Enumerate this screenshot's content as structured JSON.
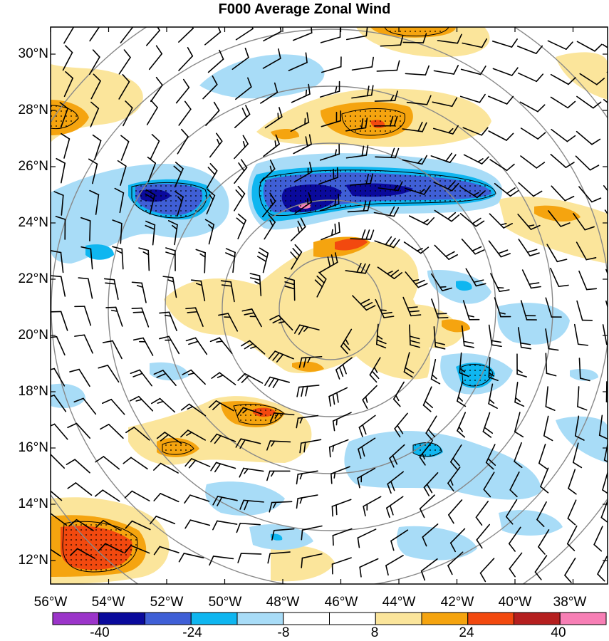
{
  "title": "F000 Average Zonal Wind",
  "lat_labels": [
    "30°N",
    "28°N",
    "26°N",
    "24°N",
    "22°N",
    "20°N",
    "18°N",
    "16°N",
    "14°N",
    "12°N"
  ],
  "lon_labels": [
    "56°W",
    "54°W",
    "52°W",
    "50°W",
    "48°W",
    "46°W",
    "44°W",
    "42°W",
    "40°W",
    "38°W"
  ],
  "colorbar": {
    "colors": [
      "#9b34c9",
      "#0a0a9c",
      "#3f5fd6",
      "#0fb6f0",
      "#a8dcf7",
      "#ffffff",
      "#ffffff",
      "#fbe59b",
      "#f5a40f",
      "#f2490f",
      "#b51f1f",
      "#f77fb5"
    ],
    "labels": [
      "-40",
      "-24",
      "-8",
      "8",
      "24",
      "40"
    ]
  },
  "map": {
    "lon_range": [
      -56,
      -37.5
    ],
    "lat_range": [
      11.2,
      31
    ],
    "range_ring_center": [
      -46.5,
      21.2
    ],
    "hatching": "stippled where significant"
  }
}
